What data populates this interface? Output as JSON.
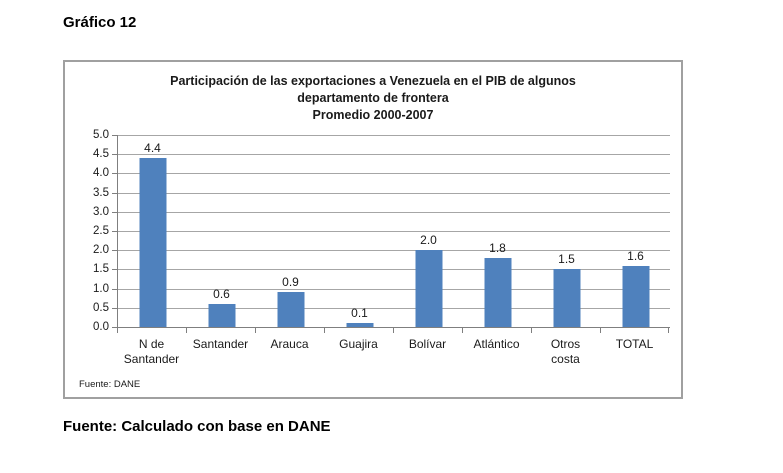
{
  "page": {
    "heading": "Gráfico 12",
    "caption": "Fuente: Calculado con base en DANE"
  },
  "chart": {
    "source": "Fuente: DANE"
  },
  "chart_data": {
    "type": "bar",
    "title_lines": [
      "Participación de las exportaciones a Venezuela en el PIB de algunos",
      "departamento de frontera",
      "Promedio 2000-2007"
    ],
    "title": "Participación de las exportaciones a Venezuela en el PIB de algunos departamento de frontera - Promedio 2000-2007",
    "categories": [
      "N de\nSantander",
      "Santander",
      "Arauca",
      "Guajira",
      "Bolívar",
      "Atlántico",
      "Otros\ncosta",
      "TOTAL"
    ],
    "values": [
      4.4,
      0.6,
      0.9,
      0.1,
      2.0,
      1.8,
      1.5,
      1.6
    ],
    "data_labels": [
      "4.4",
      "0.6",
      "0.9",
      "0.1",
      "2.0",
      "1.8",
      "1.5",
      "1.6"
    ],
    "xlabel": "",
    "ylabel": "",
    "ylim": [
      0,
      5.0
    ],
    "ytick_step": 0.5,
    "ytick_labels": [
      "0.0",
      "0.5",
      "1.0",
      "1.5",
      "2.0",
      "2.5",
      "3.0",
      "3.5",
      "4.0",
      "4.5",
      "5.0"
    ],
    "grid": true,
    "legend": "none",
    "bar_color": "#4F81BD",
    "gridline_color": "#A6A6A6",
    "axis_color": "#7F7F7F"
  }
}
